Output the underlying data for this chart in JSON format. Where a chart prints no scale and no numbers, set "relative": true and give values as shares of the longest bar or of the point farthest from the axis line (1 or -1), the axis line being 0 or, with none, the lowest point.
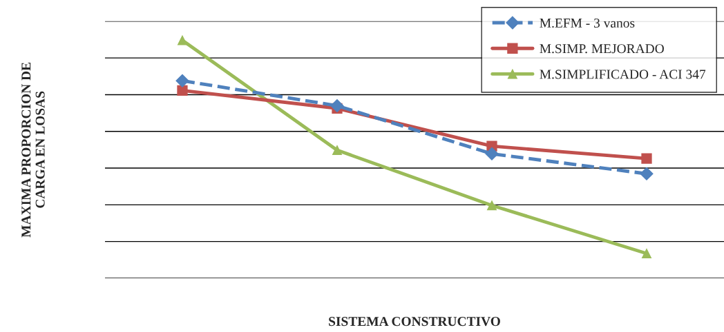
{
  "chart_data": {
    "type": "line",
    "relative": true,
    "xlabel": "SISTEMA CONSTRUCTIVO",
    "ylabel": "MAXIMA PROPORCION DE\nCARGA EN LOSAS",
    "categories": [
      null,
      null,
      null,
      null
    ],
    "series": [
      {
        "name": "M.EFM - 3 vanos",
        "color": "#4f81bd",
        "marker": "diamond",
        "line_style": "dashed",
        "values": [
          0.83,
          0.725,
          0.523,
          0.439
        ]
      },
      {
        "name": "M.SIMP. MEJORADO",
        "color": "#c0504d",
        "marker": "square",
        "line_style": "solid",
        "values": [
          0.789,
          0.714,
          0.555,
          0.503
        ]
      },
      {
        "name": "M.SIMPLIFICADO - ACI 347",
        "color": "#9bbb59",
        "marker": "triangle",
        "line_style": "solid",
        "values": [
          1.0,
          0.538,
          0.306,
          0.104
        ]
      }
    ],
    "grid": "y",
    "legend": "top right",
    "tick_labels": false
  }
}
